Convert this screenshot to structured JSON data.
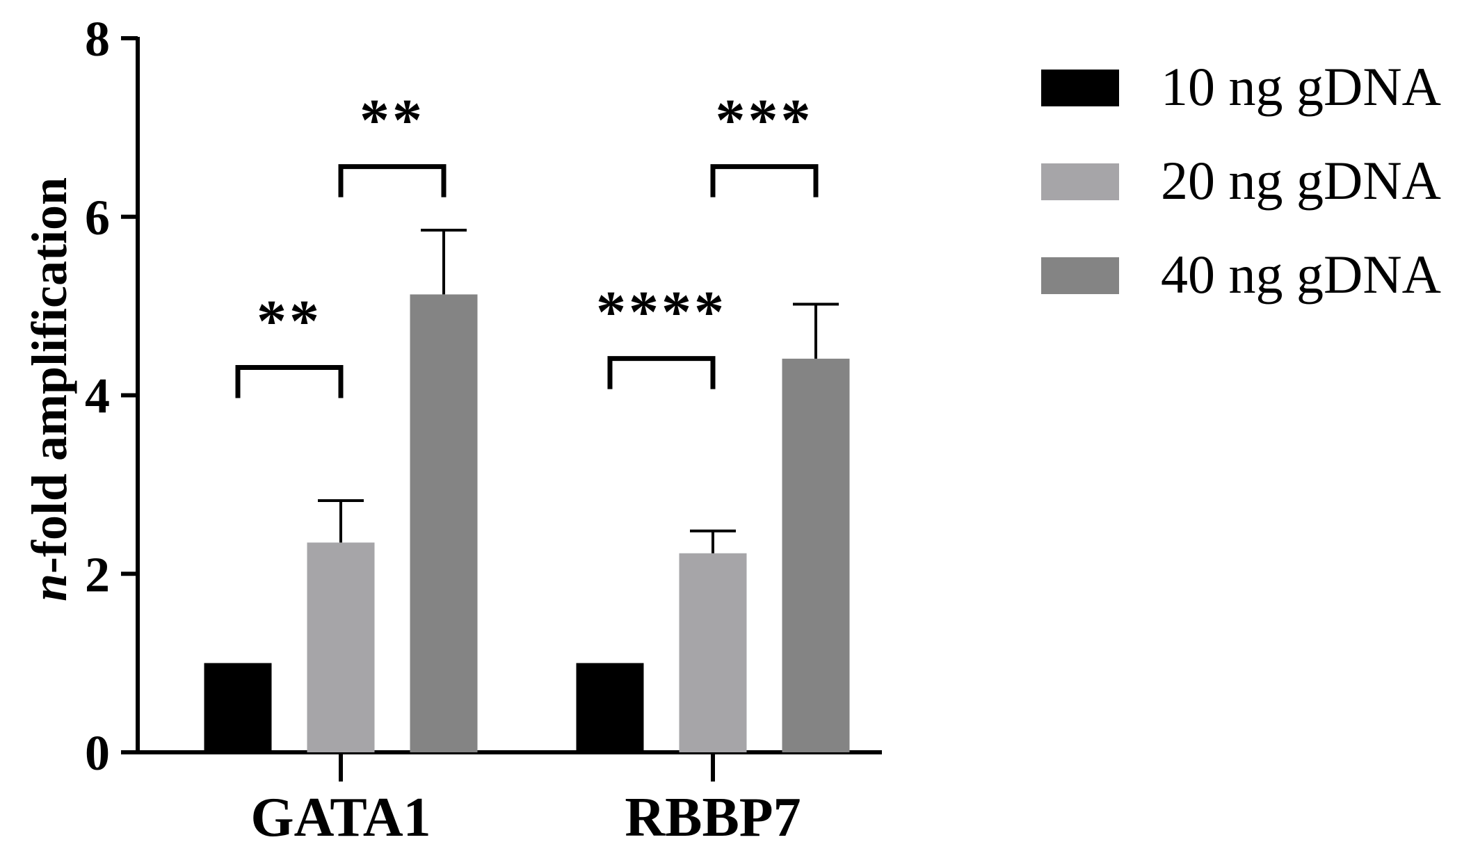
{
  "chart_data": {
    "type": "bar",
    "categories": [
      "GATA1",
      "RBBP7"
    ],
    "series": [
      {
        "name": "10 ng gDNA",
        "color": "#000000",
        "values": [
          1.0,
          1.0
        ],
        "errors": [
          0,
          0
        ]
      },
      {
        "name": "20 ng gDNA",
        "color": "#a6a5a8",
        "values": [
          2.35,
          2.23
        ],
        "errors": [
          0.47,
          0.25
        ]
      },
      {
        "name": "40 ng gDNA",
        "color": "#848484",
        "values": [
          5.13,
          4.41
        ],
        "errors": [
          0.72,
          0.61
        ]
      }
    ],
    "title": "",
    "xlabel": "",
    "ylabel": {
      "italic_part": "n",
      "rest": "-fold amplification"
    },
    "ylim": [
      0,
      8
    ],
    "yticks": [
      "0",
      "2",
      "4",
      "6",
      "8"
    ],
    "grid": false,
    "legend_position": "top-right",
    "significance": [
      {
        "category": 0,
        "from_series": 0,
        "to_series": 1,
        "label": "**",
        "level": 4.0
      },
      {
        "category": 0,
        "from_series": 1,
        "to_series": 2,
        "label": "**",
        "level": 6.25
      },
      {
        "category": 1,
        "from_series": 0,
        "to_series": 1,
        "label": "****",
        "level": 4.1
      },
      {
        "category": 1,
        "from_series": 1,
        "to_series": 2,
        "label": "***",
        "level": 6.25
      }
    ]
  }
}
